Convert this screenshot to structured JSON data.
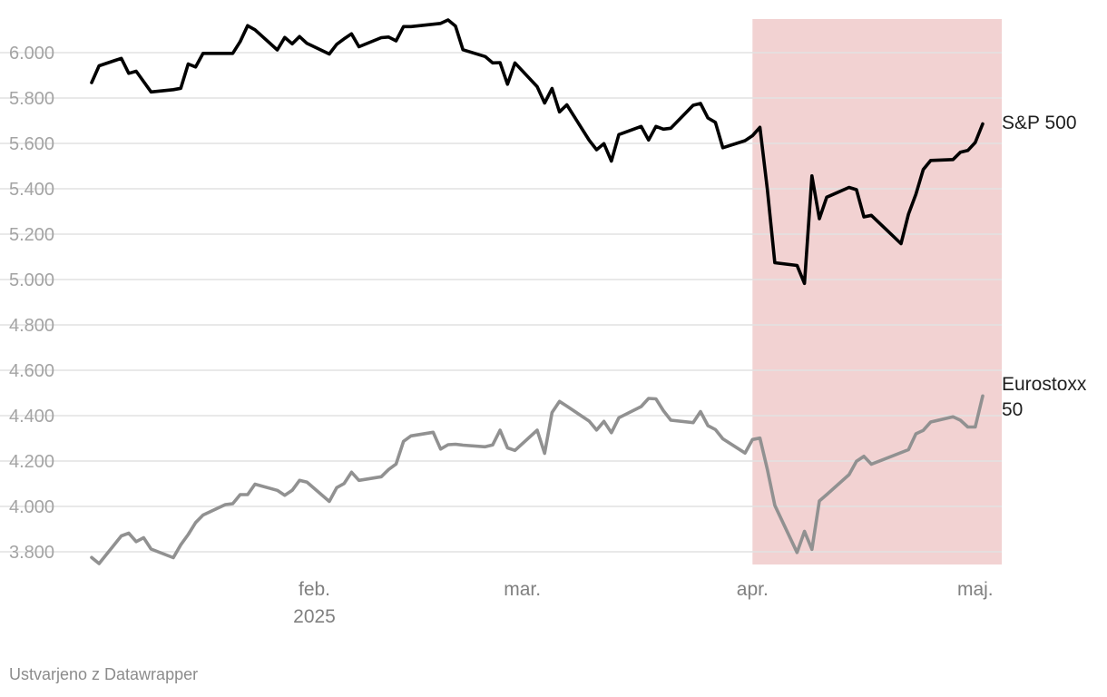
{
  "chart_data": {
    "type": "line",
    "title": "",
    "xlabel": "",
    "ylabel": "",
    "ylim": [
      3700,
      6150
    ],
    "yticks": [
      "6.000",
      "5.800",
      "5.600",
      "5.400",
      "5.200",
      "5.000",
      "4.800",
      "4.600",
      "4.400",
      "4.200",
      "4.000",
      "3.800"
    ],
    "ytick_values": [
      6000,
      5800,
      5600,
      5400,
      5200,
      5000,
      4800,
      4600,
      4400,
      4200,
      4000,
      3800
    ],
    "xlim": [
      "2025-01-02",
      "2025-05-02"
    ],
    "xticks": [
      {
        "date": "2025-02-01",
        "lines": [
          "feb.",
          "2025"
        ]
      },
      {
        "date": "2025-03-01",
        "lines": [
          "mar."
        ]
      },
      {
        "date": "2025-04-01",
        "lines": [
          "apr."
        ]
      },
      {
        "date": "2025-05-01",
        "lines": [
          "maj."
        ]
      }
    ],
    "highlight_range": [
      "2025-04-01",
      "2025-05-01"
    ],
    "highlight_color": "#f2d2d2",
    "grid": true,
    "series": [
      {
        "name": "S&P 500",
        "color": "#000000",
        "points": [
          [
            "2025-01-02",
            5868
          ],
          [
            "2025-01-03",
            5942
          ],
          [
            "2025-01-06",
            5975
          ],
          [
            "2025-01-07",
            5909
          ],
          [
            "2025-01-08",
            5918
          ],
          [
            "2025-01-10",
            5827
          ],
          [
            "2025-01-13",
            5837
          ],
          [
            "2025-01-14",
            5843
          ],
          [
            "2025-01-15",
            5950
          ],
          [
            "2025-01-16",
            5937
          ],
          [
            "2025-01-17",
            5997
          ],
          [
            "2025-01-21",
            5997
          ],
          [
            "2025-01-22",
            6049
          ],
          [
            "2025-01-23",
            6119
          ],
          [
            "2025-01-24",
            6101
          ],
          [
            "2025-01-27",
            6012
          ],
          [
            "2025-01-28",
            6067
          ],
          [
            "2025-01-29",
            6039
          ],
          [
            "2025-01-30",
            6071
          ],
          [
            "2025-01-31",
            6041
          ],
          [
            "2025-02-03",
            5994
          ],
          [
            "2025-02-04",
            6037
          ],
          [
            "2025-02-05",
            6061
          ],
          [
            "2025-02-06",
            6083
          ],
          [
            "2025-02-07",
            6026
          ],
          [
            "2025-02-10",
            6066
          ],
          [
            "2025-02-11",
            6069
          ],
          [
            "2025-02-12",
            6052
          ],
          [
            "2025-02-13",
            6115
          ],
          [
            "2025-02-14",
            6115
          ],
          [
            "2025-02-18",
            6129
          ],
          [
            "2025-02-19",
            6144
          ],
          [
            "2025-02-20",
            6117
          ],
          [
            "2025-02-21",
            6013
          ],
          [
            "2025-02-24",
            5983
          ],
          [
            "2025-02-25",
            5955
          ],
          [
            "2025-02-26",
            5956
          ],
          [
            "2025-02-27",
            5861
          ],
          [
            "2025-02-28",
            5955
          ],
          [
            "2025-03-03",
            5850
          ],
          [
            "2025-03-04",
            5778
          ],
          [
            "2025-03-05",
            5842
          ],
          [
            "2025-03-06",
            5739
          ],
          [
            "2025-03-07",
            5770
          ],
          [
            "2025-03-10",
            5614
          ],
          [
            "2025-03-11",
            5572
          ],
          [
            "2025-03-12",
            5599
          ],
          [
            "2025-03-13",
            5522
          ],
          [
            "2025-03-14",
            5639
          ],
          [
            "2025-03-17",
            5675
          ],
          [
            "2025-03-18",
            5615
          ],
          [
            "2025-03-19",
            5675
          ],
          [
            "2025-03-20",
            5663
          ],
          [
            "2025-03-21",
            5667
          ],
          [
            "2025-03-24",
            5768
          ],
          [
            "2025-03-25",
            5776
          ],
          [
            "2025-03-26",
            5712
          ],
          [
            "2025-03-27",
            5693
          ],
          [
            "2025-03-28",
            5581
          ],
          [
            "2025-03-31",
            5612
          ],
          [
            "2025-04-01",
            5634
          ],
          [
            "2025-04-02",
            5671
          ],
          [
            "2025-04-03",
            5397
          ],
          [
            "2025-04-04",
            5074
          ],
          [
            "2025-04-07",
            5062
          ],
          [
            "2025-04-08",
            4983
          ],
          [
            "2025-04-09",
            5457
          ],
          [
            "2025-04-10",
            5268
          ],
          [
            "2025-04-11",
            5363
          ],
          [
            "2025-04-14",
            5406
          ],
          [
            "2025-04-15",
            5396
          ],
          [
            "2025-04-16",
            5276
          ],
          [
            "2025-04-17",
            5283
          ],
          [
            "2025-04-21",
            5158
          ],
          [
            "2025-04-22",
            5288
          ],
          [
            "2025-04-23",
            5376
          ],
          [
            "2025-04-24",
            5485
          ],
          [
            "2025-04-25",
            5525
          ],
          [
            "2025-04-28",
            5529
          ],
          [
            "2025-04-29",
            5561
          ],
          [
            "2025-04-30",
            5569
          ],
          [
            "2025-05-01",
            5604
          ],
          [
            "2025-05-02",
            5686
          ]
        ]
      },
      {
        "name": "Eurostoxx 50",
        "label_lines": [
          "Eurostoxx",
          "50"
        ],
        "color": "#919191",
        "points": [
          [
            "2025-01-02",
            3775
          ],
          [
            "2025-01-03",
            3748
          ],
          [
            "2025-01-06",
            3870
          ],
          [
            "2025-01-07",
            3882
          ],
          [
            "2025-01-08",
            3845
          ],
          [
            "2025-01-09",
            3862
          ],
          [
            "2025-01-10",
            3812
          ],
          [
            "2025-01-13",
            3774
          ],
          [
            "2025-01-14",
            3831
          ],
          [
            "2025-01-15",
            3876
          ],
          [
            "2025-01-16",
            3929
          ],
          [
            "2025-01-17",
            3962
          ],
          [
            "2025-01-20",
            4008
          ],
          [
            "2025-01-21",
            4012
          ],
          [
            "2025-01-22",
            4052
          ],
          [
            "2025-01-23",
            4052
          ],
          [
            "2025-01-24",
            4098
          ],
          [
            "2025-01-27",
            4071
          ],
          [
            "2025-01-28",
            4049
          ],
          [
            "2025-01-29",
            4071
          ],
          [
            "2025-01-30",
            4115
          ],
          [
            "2025-01-31",
            4107
          ],
          [
            "2025-02-03",
            4022
          ],
          [
            "2025-02-04",
            4083
          ],
          [
            "2025-02-05",
            4101
          ],
          [
            "2025-02-06",
            4151
          ],
          [
            "2025-02-07",
            4115
          ],
          [
            "2025-02-10",
            4131
          ],
          [
            "2025-02-11",
            4163
          ],
          [
            "2025-02-12",
            4187
          ],
          [
            "2025-02-13",
            4287
          ],
          [
            "2025-02-14",
            4311
          ],
          [
            "2025-02-17",
            4327
          ],
          [
            "2025-02-18",
            4253
          ],
          [
            "2025-02-19",
            4272
          ],
          [
            "2025-02-20",
            4274
          ],
          [
            "2025-02-21",
            4270
          ],
          [
            "2025-02-24",
            4263
          ],
          [
            "2025-02-25",
            4271
          ],
          [
            "2025-02-26",
            4336
          ],
          [
            "2025-02-27",
            4258
          ],
          [
            "2025-02-28",
            4247
          ],
          [
            "2025-03-03",
            4336
          ],
          [
            "2025-03-04",
            4234
          ],
          [
            "2025-03-05",
            4414
          ],
          [
            "2025-03-06",
            4463
          ],
          [
            "2025-03-07",
            4442
          ],
          [
            "2025-03-10",
            4376
          ],
          [
            "2025-03-11",
            4337
          ],
          [
            "2025-03-12",
            4375
          ],
          [
            "2025-03-13",
            4325
          ],
          [
            "2025-03-14",
            4391
          ],
          [
            "2025-03-17",
            4440
          ],
          [
            "2025-03-18",
            4476
          ],
          [
            "2025-03-19",
            4474
          ],
          [
            "2025-03-20",
            4422
          ],
          [
            "2025-03-21",
            4380
          ],
          [
            "2025-03-24",
            4369
          ],
          [
            "2025-03-25",
            4418
          ],
          [
            "2025-03-26",
            4356
          ],
          [
            "2025-03-27",
            4339
          ],
          [
            "2025-03-28",
            4298
          ],
          [
            "2025-03-31",
            4235
          ],
          [
            "2025-04-01",
            4295
          ],
          [
            "2025-04-02",
            4301
          ],
          [
            "2025-04-03",
            4163
          ],
          [
            "2025-04-04",
            4005
          ],
          [
            "2025-04-07",
            3797
          ],
          [
            "2025-04-08",
            3890
          ],
          [
            "2025-04-09",
            3811
          ],
          [
            "2025-04-10",
            4024
          ],
          [
            "2025-04-11",
            4052
          ],
          [
            "2025-04-14",
            4140
          ],
          [
            "2025-04-15",
            4199
          ],
          [
            "2025-04-16",
            4221
          ],
          [
            "2025-04-17",
            4186
          ],
          [
            "2025-04-22",
            4250
          ],
          [
            "2025-04-23",
            4320
          ],
          [
            "2025-04-24",
            4335
          ],
          [
            "2025-04-25",
            4372
          ],
          [
            "2025-04-28",
            4395
          ],
          [
            "2025-04-29",
            4380
          ],
          [
            "2025-04-30",
            4350
          ],
          [
            "2025-05-01",
            4350
          ],
          [
            "2025-05-02",
            4487
          ]
        ]
      }
    ]
  },
  "footer": {
    "credit": "Ustvarjeno z Datawrapper"
  }
}
